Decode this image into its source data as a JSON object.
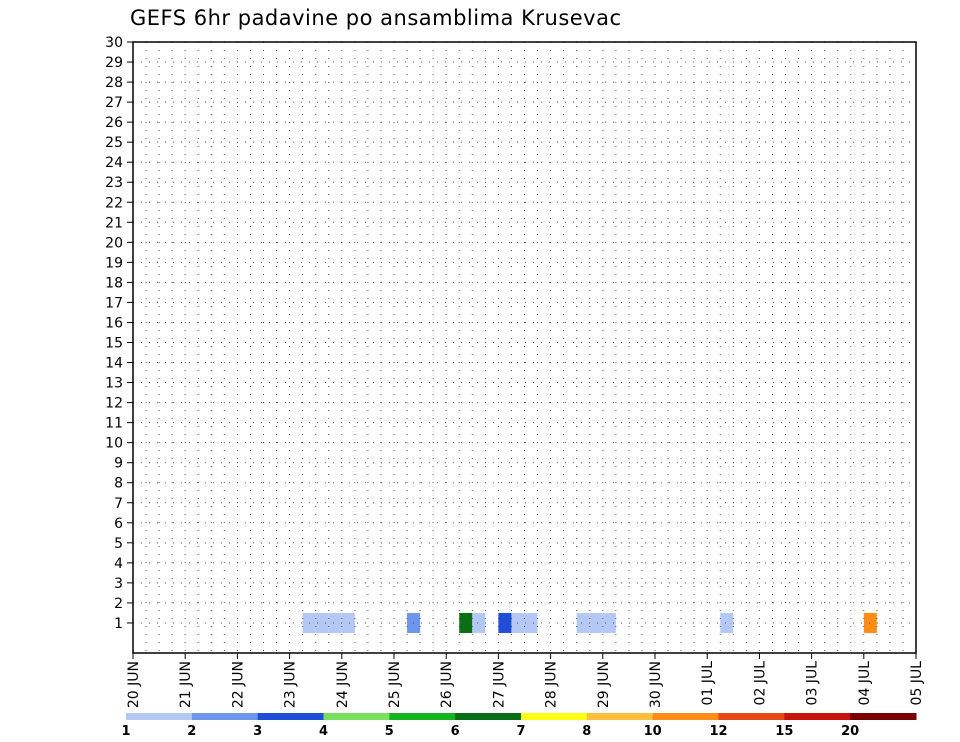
{
  "chart_data": {
    "type": "heatmap",
    "title": "GEFS 6hr padavine po ansamblima Krusevac",
    "y_ticks": [
      1,
      2,
      3,
      4,
      5,
      6,
      7,
      8,
      9,
      10,
      11,
      12,
      13,
      14,
      15,
      16,
      17,
      18,
      19,
      20,
      21,
      22,
      23,
      24,
      25,
      26,
      27,
      28,
      29,
      30
    ],
    "x_ticks": [
      "20 JUN",
      "21 JUN",
      "22 JUN",
      "23 JUN",
      "24 JUN",
      "25 JUN",
      "26 JUN",
      "27 JUN",
      "28 JUN",
      "29 JUN",
      "30 JUN",
      "01 JUL",
      "02 JUL",
      "03 JUL",
      "04 JUL",
      "05 JUL"
    ],
    "grid": "dotted",
    "legend": {
      "placement": "bottom",
      "labels": [
        "1",
        "2",
        "3",
        "4",
        "5",
        "6",
        "7",
        "8",
        "10",
        "12",
        "15",
        "20"
      ],
      "colors": [
        "#b4c8f5",
        "#6e96ec",
        "#1e4ed8",
        "#78e05a",
        "#14b41e",
        "#0a6e14",
        "#ffff14",
        "#ffbe3c",
        "#ff8c14",
        "#e64614",
        "#c8140a",
        "#780000"
      ]
    },
    "cells": [
      [
        1,
        "23 JUN 06",
        1
      ],
      [
        1,
        "23 JUN 12",
        1
      ],
      [
        1,
        "23 JUN 18",
        1
      ],
      [
        1,
        "24 JUN 00",
        1
      ],
      [
        1,
        "25 JUN 06",
        2
      ],
      [
        1,
        "26 JUN 06",
        6
      ],
      [
        1,
        "26 JUN 12",
        1
      ],
      [
        1,
        "27 JUN 00",
        3
      ],
      [
        1,
        "27 JUN 06",
        1
      ],
      [
        1,
        "27 JUN 12",
        1
      ],
      [
        1,
        "28 JUN 12",
        1
      ],
      [
        1,
        "28 JUN 18",
        1
      ],
      [
        1,
        "29 JUN 00",
        1
      ],
      [
        1,
        "01 JUL 06",
        1
      ],
      [
        1,
        "04 JUL 00",
        9
      ]
    ]
  }
}
